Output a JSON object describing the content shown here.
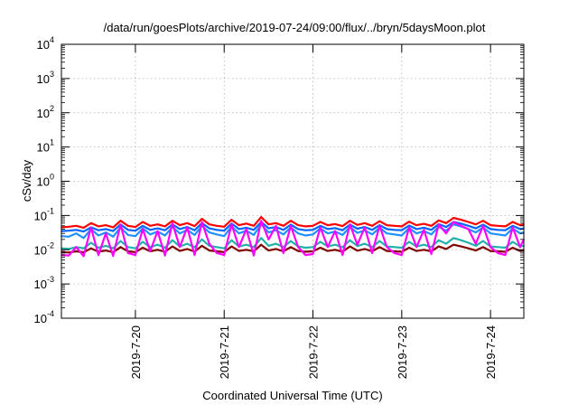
{
  "chart_data": {
    "type": "line",
    "title": "/data/run/goesPlots/archive/2019-07-24/09:00/flux/../bryn/5daysMoon.plot",
    "xlabel": "Coordinated Universal Time (UTC)",
    "ylabel": "cSv/day",
    "x_range": [
      "2019-07-19T04:00",
      "2019-07-24T09:00"
    ],
    "y_scale": "log",
    "ylim": [
      0.0001,
      10000
    ],
    "grid": true,
    "legend": "none",
    "x_ticks": [
      {
        "value": "2019-07-20T00:00",
        "label": "2019-7-20"
      },
      {
        "value": "2019-07-21T00:00",
        "label": "2019-7-21"
      },
      {
        "value": "2019-07-22T00:00",
        "label": "2019-7-22"
      },
      {
        "value": "2019-07-23T00:00",
        "label": "2019-7-23"
      },
      {
        "value": "2019-07-24T00:00",
        "label": "2019-7-24"
      }
    ],
    "y_ticks": [
      {
        "value": 0.0001,
        "base": "10",
        "exp": "-4"
      },
      {
        "value": 0.001,
        "base": "10",
        "exp": "-3"
      },
      {
        "value": 0.01,
        "base": "10",
        "exp": "-2"
      },
      {
        "value": 0.1,
        "base": "10",
        "exp": "-1"
      },
      {
        "value": 1,
        "base": "10",
        "exp": "0"
      },
      {
        "value": 10,
        "base": "10",
        "exp": "1"
      },
      {
        "value": 100,
        "base": "10",
        "exp": "2"
      },
      {
        "value": 1000,
        "base": "10",
        "exp": "3"
      },
      {
        "value": 10000,
        "base": "10",
        "exp": "4"
      }
    ],
    "x": [
      "2019-07-19T04:00",
      "2019-07-19T06:00",
      "2019-07-19T08:00",
      "2019-07-19T10:00",
      "2019-07-19T12:00",
      "2019-07-19T14:00",
      "2019-07-19T16:00",
      "2019-07-19T18:00",
      "2019-07-19T20:00",
      "2019-07-19T22:00",
      "2019-07-20T00:00",
      "2019-07-20T02:00",
      "2019-07-20T04:00",
      "2019-07-20T06:00",
      "2019-07-20T08:00",
      "2019-07-20T10:00",
      "2019-07-20T12:00",
      "2019-07-20T14:00",
      "2019-07-20T16:00",
      "2019-07-20T18:00",
      "2019-07-20T20:00",
      "2019-07-20T22:00",
      "2019-07-21T00:00",
      "2019-07-21T02:00",
      "2019-07-21T04:00",
      "2019-07-21T06:00",
      "2019-07-21T08:00",
      "2019-07-21T10:00",
      "2019-07-21T12:00",
      "2019-07-21T14:00",
      "2019-07-21T16:00",
      "2019-07-21T18:00",
      "2019-07-21T20:00",
      "2019-07-21T22:00",
      "2019-07-22T00:00",
      "2019-07-22T02:00",
      "2019-07-22T04:00",
      "2019-07-22T06:00",
      "2019-07-22T08:00",
      "2019-07-22T10:00",
      "2019-07-22T12:00",
      "2019-07-22T14:00",
      "2019-07-22T16:00",
      "2019-07-22T18:00",
      "2019-07-22T20:00",
      "2019-07-22T22:00",
      "2019-07-23T00:00",
      "2019-07-23T02:00",
      "2019-07-23T04:00",
      "2019-07-23T06:00",
      "2019-07-23T08:00",
      "2019-07-23T10:00",
      "2019-07-23T12:00",
      "2019-07-23T14:00",
      "2019-07-23T16:00",
      "2019-07-23T18:00",
      "2019-07-23T20:00",
      "2019-07-23T22:00",
      "2019-07-24T00:00",
      "2019-07-24T02:00",
      "2019-07-24T04:00",
      "2019-07-24T06:00",
      "2019-07-24T08:00",
      "2019-07-24T09:00"
    ],
    "series": [
      {
        "color": "#ff0000",
        "values": [
          0.045,
          0.047,
          0.05,
          0.044,
          0.06,
          0.048,
          0.052,
          0.045,
          0.07,
          0.05,
          0.046,
          0.065,
          0.05,
          0.055,
          0.048,
          0.07,
          0.052,
          0.06,
          0.049,
          0.08,
          0.055,
          0.05,
          0.047,
          0.075,
          0.052,
          0.058,
          0.05,
          0.09,
          0.055,
          0.06,
          0.05,
          0.07,
          0.052,
          0.048,
          0.05,
          0.065,
          0.052,
          0.056,
          0.049,
          0.07,
          0.053,
          0.06,
          0.05,
          0.068,
          0.052,
          0.05,
          0.048,
          0.066,
          0.052,
          0.057,
          0.05,
          0.072,
          0.06,
          0.085,
          0.075,
          0.065,
          0.055,
          0.07,
          0.052,
          0.05,
          0.048,
          0.065,
          0.052,
          0.055
        ]
      },
      {
        "color": "#0066ff",
        "values": [
          0.035,
          0.036,
          0.038,
          0.034,
          0.045,
          0.037,
          0.04,
          0.035,
          0.055,
          0.038,
          0.036,
          0.05,
          0.038,
          0.042,
          0.037,
          0.055,
          0.04,
          0.046,
          0.037,
          0.06,
          0.042,
          0.038,
          0.036,
          0.058,
          0.04,
          0.044,
          0.038,
          0.065,
          0.042,
          0.046,
          0.038,
          0.054,
          0.04,
          0.037,
          0.038,
          0.05,
          0.04,
          0.043,
          0.037,
          0.054,
          0.041,
          0.046,
          0.038,
          0.052,
          0.04,
          0.038,
          0.037,
          0.051,
          0.04,
          0.044,
          0.038,
          0.056,
          0.046,
          0.065,
          0.058,
          0.05,
          0.042,
          0.054,
          0.04,
          0.038,
          0.037,
          0.05,
          0.04,
          0.042
        ]
      },
      {
        "color": "#1e90ff",
        "values": [
          0.025,
          0.024,
          0.03,
          0.022,
          0.04,
          0.026,
          0.032,
          0.024,
          0.045,
          0.027,
          0.025,
          0.042,
          0.028,
          0.034,
          0.026,
          0.046,
          0.03,
          0.038,
          0.027,
          0.05,
          0.032,
          0.028,
          0.025,
          0.048,
          0.03,
          0.036,
          0.027,
          0.055,
          0.032,
          0.037,
          0.028,
          0.045,
          0.03,
          0.026,
          0.028,
          0.042,
          0.03,
          0.034,
          0.027,
          0.046,
          0.031,
          0.037,
          0.028,
          0.044,
          0.03,
          0.028,
          0.026,
          0.043,
          0.03,
          0.035,
          0.028,
          0.047,
          0.036,
          0.055,
          0.048,
          0.04,
          0.032,
          0.045,
          0.03,
          0.028,
          0.026,
          0.042,
          0.03,
          0.032
        ]
      },
      {
        "color": "#20b2aa",
        "values": [
          0.011,
          0.0105,
          0.012,
          0.011,
          0.016,
          0.0115,
          0.013,
          0.011,
          0.018,
          0.012,
          0.011,
          0.017,
          0.012,
          0.014,
          0.0115,
          0.019,
          0.0125,
          0.015,
          0.0118,
          0.02,
          0.013,
          0.012,
          0.011,
          0.019,
          0.0125,
          0.014,
          0.012,
          0.022,
          0.013,
          0.015,
          0.012,
          0.018,
          0.0125,
          0.0115,
          0.012,
          0.017,
          0.0125,
          0.014,
          0.0118,
          0.019,
          0.0128,
          0.015,
          0.012,
          0.018,
          0.0125,
          0.012,
          0.0115,
          0.017,
          0.0125,
          0.014,
          0.012,
          0.019,
          0.015,
          0.022,
          0.019,
          0.016,
          0.013,
          0.018,
          0.0125,
          0.012,
          0.0115,
          0.017,
          0.0125,
          0.013
        ]
      },
      {
        "color": "#800000",
        "values": [
          0.0085,
          0.0083,
          0.009,
          0.0084,
          0.011,
          0.0087,
          0.0095,
          0.0084,
          0.012,
          0.009,
          0.0085,
          0.0115,
          0.009,
          0.01,
          0.0087,
          0.0125,
          0.0092,
          0.0105,
          0.0088,
          0.013,
          0.0095,
          0.009,
          0.0085,
          0.0125,
          0.0092,
          0.01,
          0.009,
          0.014,
          0.0095,
          0.0105,
          0.009,
          0.012,
          0.0092,
          0.0087,
          0.009,
          0.0115,
          0.0092,
          0.01,
          0.0088,
          0.0125,
          0.0094,
          0.0105,
          0.009,
          0.012,
          0.0092,
          0.009,
          0.0087,
          0.0115,
          0.0092,
          0.01,
          0.009,
          0.0125,
          0.0105,
          0.014,
          0.0125,
          0.011,
          0.0095,
          0.012,
          0.0092,
          0.009,
          0.0087,
          0.0115,
          0.0092,
          0.0095
        ]
      },
      {
        "color": "#ff00ff",
        "values": [
          0.007,
          0.0068,
          0.012,
          0.0065,
          0.045,
          0.007,
          0.03,
          0.0066,
          0.055,
          0.008,
          0.007,
          0.04,
          0.009,
          0.035,
          0.0068,
          0.06,
          0.012,
          0.045,
          0.007,
          0.065,
          0.015,
          0.008,
          0.007,
          0.055,
          0.012,
          0.04,
          0.0068,
          0.07,
          0.02,
          0.05,
          0.008,
          0.05,
          0.012,
          0.007,
          0.0075,
          0.045,
          0.012,
          0.035,
          0.007,
          0.055,
          0.014,
          0.045,
          0.008,
          0.05,
          0.012,
          0.008,
          0.007,
          0.045,
          0.012,
          0.038,
          0.0075,
          0.055,
          0.03,
          0.065,
          0.05,
          0.04,
          0.015,
          0.05,
          0.012,
          0.008,
          0.007,
          0.045,
          0.012,
          0.02
        ]
      }
    ]
  }
}
